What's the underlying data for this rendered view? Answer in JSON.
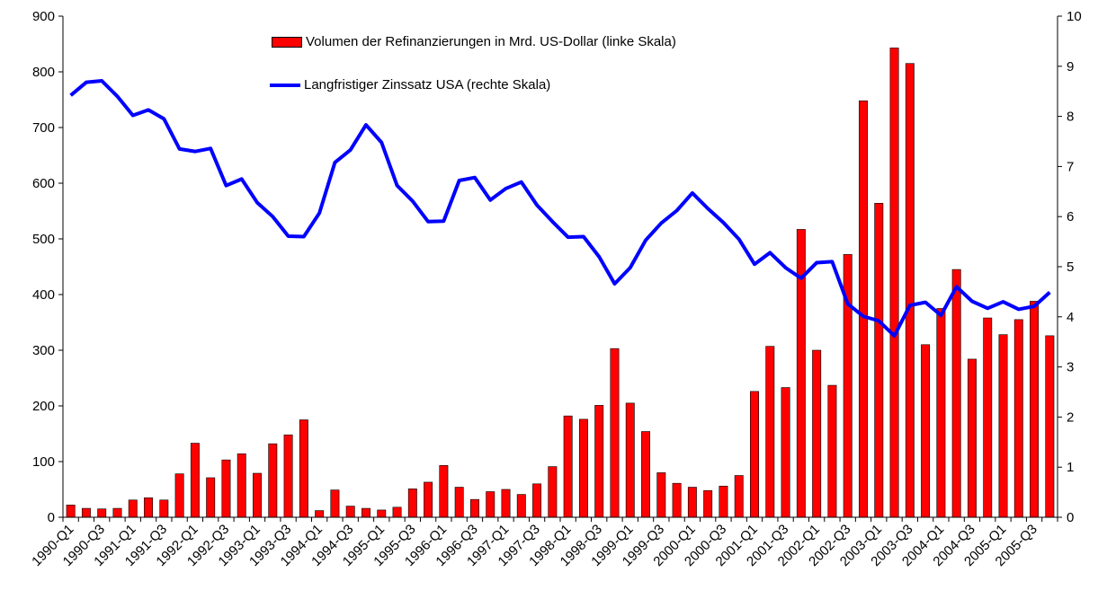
{
  "chart_data": {
    "type": "bar_line",
    "categories": [
      "1990-Q1",
      null,
      "1990-Q3",
      null,
      "1991-Q1",
      null,
      "1991-Q3",
      null,
      "1992-Q1",
      null,
      "1992-Q3",
      null,
      "1993-Q1",
      null,
      "1993-Q3",
      null,
      "1994-Q1",
      null,
      "1994-Q3",
      null,
      "1995-Q1",
      null,
      "1995-Q3",
      null,
      "1996-Q1",
      null,
      "1996-Q3",
      null,
      "1997-Q1",
      null,
      "1997-Q3",
      null,
      "1998-Q1",
      null,
      "1998-Q3",
      null,
      "1999-Q1",
      null,
      "1999-Q3",
      null,
      "2000-Q1",
      null,
      "2000-Q3",
      null,
      "2001-Q1",
      null,
      "2001-Q3",
      null,
      "2002-Q1",
      null,
      "2002-Q3",
      null,
      "2003-Q1",
      null,
      "2003-Q3",
      null,
      "2004-Q1",
      null,
      "2004-Q3",
      null,
      "2005-Q1",
      null,
      "2005-Q3",
      null
    ],
    "series": [
      {
        "name": "Volumen der Refinanzierungen in Mrd. US-Dollar (linke Skala)",
        "type": "bar",
        "color": "#ff0000",
        "values": [
          22,
          16,
          15,
          16,
          31,
          35,
          31,
          78,
          133,
          71,
          103,
          114,
          79,
          132,
          148,
          175,
          12,
          49,
          20,
          16,
          13,
          18,
          51,
          63,
          93,
          54,
          32,
          46,
          50,
          41,
          60,
          91,
          182,
          176,
          201,
          303,
          205,
          154,
          80,
          61,
          54,
          48,
          56,
          75,
          226,
          307,
          233,
          517,
          300,
          237,
          472,
          748,
          564,
          843,
          815,
          310,
          375,
          445,
          284,
          358,
          328,
          355,
          388,
          326
        ]
      },
      {
        "name": "Langfristiger Zinssatz USA (rechte Skala)",
        "type": "line",
        "axis": "y2",
        "color": "#0000ff",
        "values": [
          8.42,
          8.68,
          8.71,
          8.4,
          8.02,
          8.13,
          7.95,
          7.35,
          7.3,
          7.36,
          6.62,
          6.75,
          6.28,
          6.0,
          5.61,
          5.6,
          6.07,
          7.08,
          7.33,
          7.83,
          7.48,
          6.62,
          6.31,
          5.9,
          5.91,
          6.72,
          6.78,
          6.33,
          6.56,
          6.69,
          6.23,
          5.9,
          5.59,
          5.6,
          5.2,
          4.66,
          4.98,
          5.53,
          5.87,
          6.12,
          6.47,
          6.16,
          5.88,
          5.55,
          5.05,
          5.28,
          4.98,
          4.77,
          5.08,
          5.1,
          4.26,
          4.01,
          3.92,
          3.62,
          4.23,
          4.29,
          4.03,
          4.6,
          4.31,
          4.17,
          4.3,
          4.15,
          4.21,
          4.49
        ]
      }
    ],
    "ylim": [
      0,
      900
    ],
    "yticks": [
      0,
      100,
      200,
      300,
      400,
      500,
      600,
      700,
      800,
      900
    ],
    "y2lim": [
      0,
      10
    ],
    "y2ticks": [
      0,
      1,
      2,
      3,
      4,
      5,
      6,
      7,
      8,
      9,
      10
    ]
  }
}
